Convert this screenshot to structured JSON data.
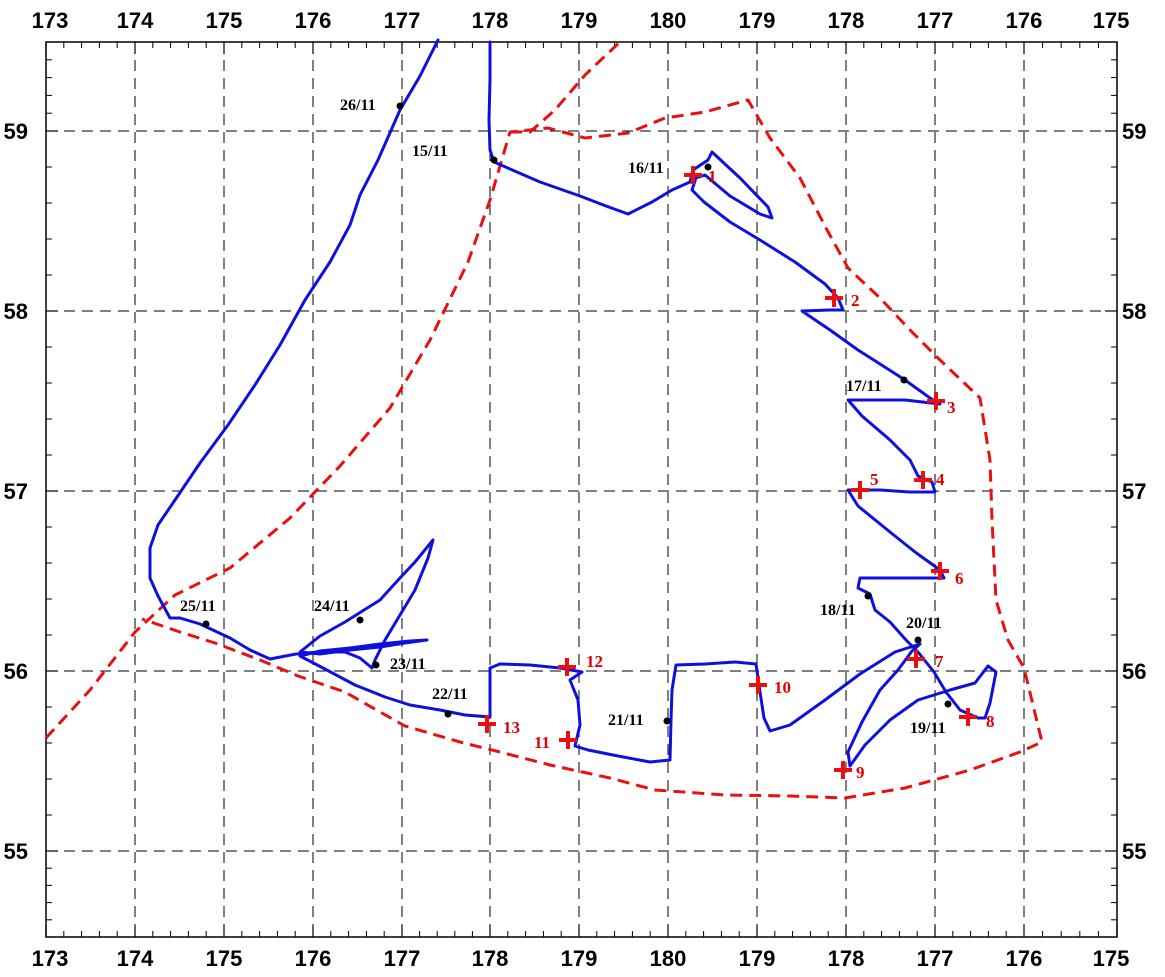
{
  "map": {
    "x_ticks_top": [
      "173",
      "174",
      "175",
      "176",
      "177",
      "178",
      "179",
      "180",
      "179",
      "178",
      "177",
      "176",
      "175"
    ],
    "x_ticks_bottom": [
      "173",
      "174",
      "175",
      "176",
      "177",
      "178",
      "179",
      "180",
      "179",
      "178",
      "177",
      "176",
      "175"
    ],
    "y_ticks_left": [
      "59",
      "58",
      "57",
      "56",
      "55"
    ],
    "y_ticks_right": [
      "59",
      "58",
      "57",
      "56",
      "55"
    ],
    "colors": {
      "track": "#1010dd",
      "boundary": "#e81010",
      "station": "#e81010",
      "grid": "#000000",
      "date_marker": "#000000"
    },
    "date_labels": [
      "15/11",
      "16/11",
      "17/11",
      "18/11",
      "19/11",
      "20/11",
      "21/11",
      "22/11",
      "23/11",
      "24/11",
      "25/11",
      "26/11"
    ],
    "stations": [
      "1",
      "2",
      "3",
      "4",
      "5",
      "6",
      "7",
      "8",
      "9",
      "10",
      "11",
      "12",
      "13"
    ]
  }
}
